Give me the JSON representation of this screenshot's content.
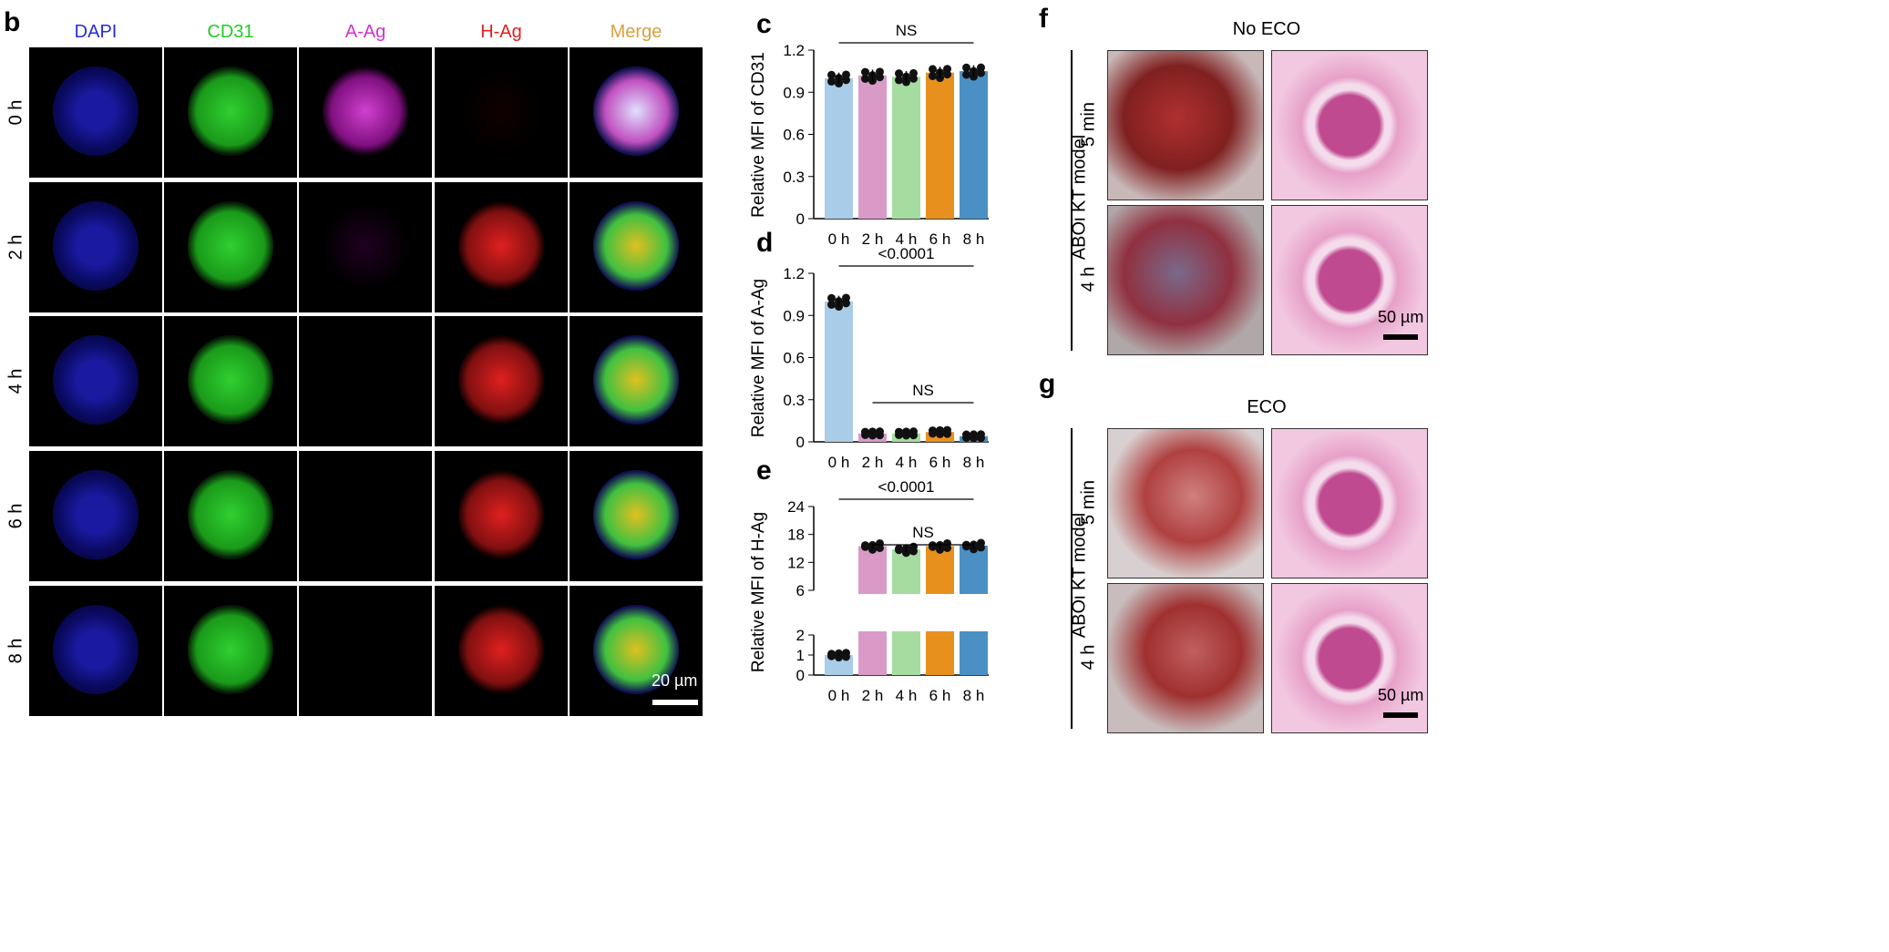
{
  "panels": {
    "b": "b",
    "c": "c",
    "d": "d",
    "e": "e",
    "f": "f",
    "g": "g"
  },
  "panel_b": {
    "channels": [
      {
        "label": "DAPI",
        "color": "#2a2ad8"
      },
      {
        "label": "CD31",
        "color": "#22cc22"
      },
      {
        "label": "A-Ag",
        "color": "#cc33cc"
      },
      {
        "label": "H-Ag",
        "color": "#e02020"
      },
      {
        "label": "Merge",
        "color": "#d9a040"
      }
    ],
    "rows": [
      "0 h",
      "2 h",
      "4 h",
      "6 h",
      "8 h"
    ],
    "scale_bar": "20 µm"
  },
  "panel_f": {
    "title": "No ECO",
    "model": "ABOi KT model",
    "rows": [
      "5 min",
      "4 h"
    ],
    "scale_bar": "50 µm"
  },
  "panel_g": {
    "title": "ECO",
    "model": "ABOi KT model",
    "rows": [
      "5 min",
      "4 h"
    ],
    "scale_bar": "50 µm"
  },
  "chart_data": [
    {
      "type": "bar",
      "panel": "c",
      "categories": [
        "0 h",
        "2 h",
        "4 h",
        "6 h",
        "8 h"
      ],
      "values": [
        1.0,
        1.02,
        1.01,
        1.04,
        1.05
      ],
      "ylabel": "Relative MFI of CD31",
      "ylim": [
        0,
        1.2
      ],
      "yticks": [
        "0",
        "0.3",
        "0.6",
        "0.9",
        "1.2"
      ],
      "colors": [
        "#a9cce8",
        "#d99ac8",
        "#a6dca0",
        "#e8901e",
        "#4a90c4"
      ],
      "annotations": [
        {
          "text": "NS",
          "from": "0 h",
          "to": "8 h"
        }
      ]
    },
    {
      "type": "bar",
      "panel": "d",
      "categories": [
        "0 h",
        "2 h",
        "4 h",
        "6 h",
        "8 h"
      ],
      "values": [
        1.0,
        0.06,
        0.06,
        0.07,
        0.04
      ],
      "ylabel": "Relative MFI of A-Ag",
      "ylim": [
        0,
        1.2
      ],
      "yticks": [
        "0",
        "0.3",
        "0.6",
        "0.9",
        "1.2"
      ],
      "colors": [
        "#a9cce8",
        "#d99ac8",
        "#a6dca0",
        "#e8901e",
        "#4a90c4"
      ],
      "annotations": [
        {
          "text": "<0.0001",
          "from": "0 h",
          "to": "8 h"
        },
        {
          "text": "NS",
          "from": "2 h",
          "to": "8 h"
        }
      ]
    },
    {
      "type": "bar",
      "panel": "e",
      "categories": [
        "0 h",
        "2 h",
        "4 h",
        "6 h",
        "8 h"
      ],
      "values": [
        1.0,
        15.5,
        14.8,
        15.5,
        15.6
      ],
      "ylabel": "Relative MFI of H-Ag",
      "axis_break": [
        2,
        6
      ],
      "ylim": [
        0,
        24
      ],
      "yticks": [
        "0",
        "1",
        "2",
        "6",
        "12",
        "18",
        "24"
      ],
      "colors": [
        "#a9cce8",
        "#d99ac8",
        "#a6dca0",
        "#e8901e",
        "#4a90c4"
      ],
      "annotations": [
        {
          "text": "<0.0001",
          "from": "0 h",
          "to": "8 h"
        },
        {
          "text": "NS",
          "from": "2 h",
          "to": "8 h"
        }
      ]
    }
  ]
}
